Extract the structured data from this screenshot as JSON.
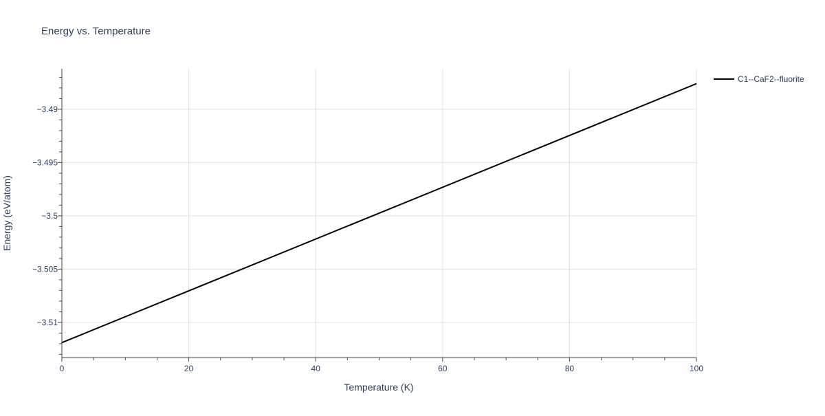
{
  "chart_data": {
    "type": "line",
    "title": "Energy vs. Temperature",
    "xlabel": "Temperature (K)",
    "ylabel": "Energy (eV/atom)",
    "xlim": [
      0,
      100
    ],
    "ylim": [
      -3.5133,
      -3.4862
    ],
    "xticks": [
      0,
      20,
      40,
      60,
      80,
      100
    ],
    "xtick_labels": [
      "0",
      "20",
      "40",
      "60",
      "80",
      "100"
    ],
    "yticks": [
      -3.51,
      -3.505,
      -3.5,
      -3.495,
      -3.49
    ],
    "ytick_labels": [
      "−3.51",
      "−3.505",
      "−3.5",
      "−3.495",
      "−3.49"
    ],
    "grid": true,
    "legend_placement": "top-right outside",
    "series": [
      {
        "name": "C1--CaF2--fluorite",
        "color": "#000000",
        "x": [
          0,
          100
        ],
        "y": [
          -3.5119,
          -3.4876
        ]
      }
    ]
  }
}
